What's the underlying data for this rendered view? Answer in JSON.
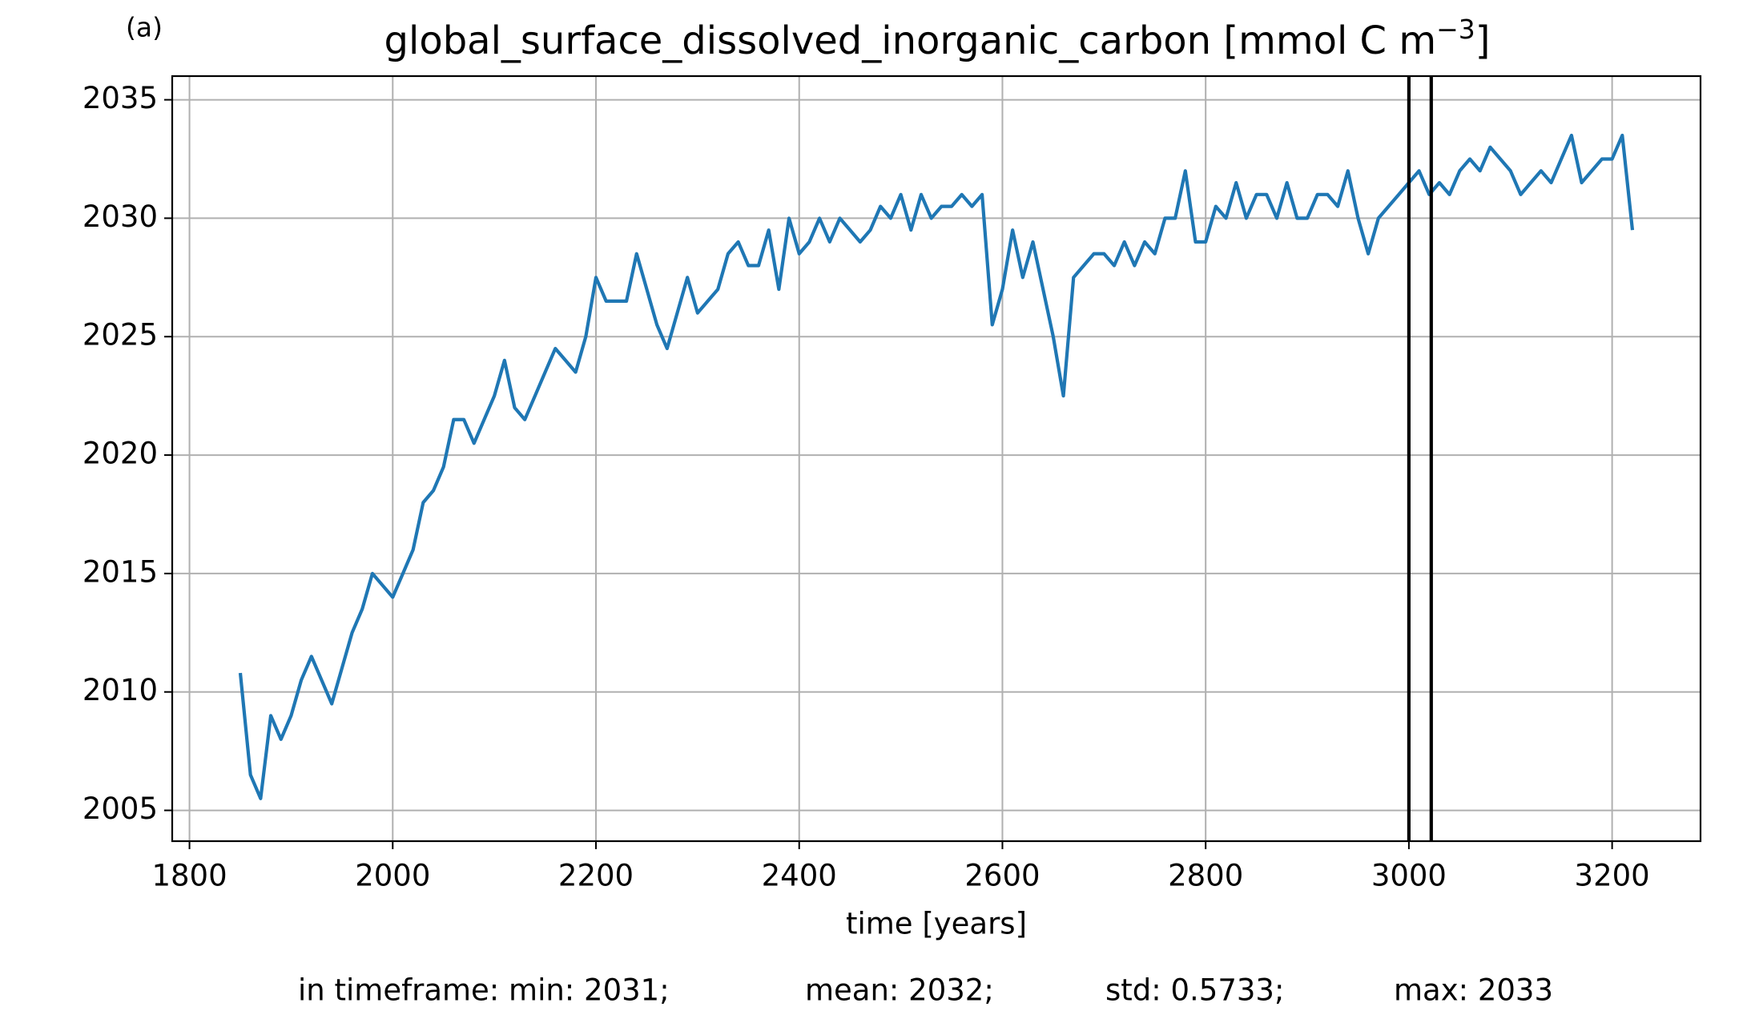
{
  "chart_data": {
    "type": "line",
    "panel_label": "(a)",
    "title": {
      "text": "global_surface_dissolved_inorganic_carbon [mmol C m",
      "superscript": "−3",
      "suffix": "]"
    },
    "xlabel": "time [years]",
    "x": [
      1850,
      1860,
      1870,
      1880,
      1890,
      1900,
      1910,
      1920,
      1930,
      1940,
      1950,
      1960,
      1970,
      1980,
      1990,
      2000,
      2010,
      2020,
      2030,
      2040,
      2050,
      2060,
      2070,
      2080,
      2090,
      2100,
      2110,
      2120,
      2130,
      2140,
      2150,
      2160,
      2170,
      2180,
      2190,
      2200,
      2210,
      2220,
      2230,
      2240,
      2250,
      2260,
      2270,
      2280,
      2290,
      2300,
      2310,
      2320,
      2330,
      2340,
      2350,
      2360,
      2370,
      2380,
      2390,
      2400,
      2410,
      2420,
      2430,
      2440,
      2450,
      2460,
      2470,
      2480,
      2490,
      2500,
      2510,
      2520,
      2530,
      2540,
      2550,
      2560,
      2570,
      2580,
      2590,
      2600,
      2610,
      2620,
      2630,
      2640,
      2650,
      2660,
      2670,
      2680,
      2690,
      2700,
      2710,
      2720,
      2730,
      2740,
      2750,
      2760,
      2770,
      2780,
      2790,
      2800,
      2810,
      2820,
      2830,
      2840,
      2850,
      2860,
      2870,
      2880,
      2890,
      2900,
      2910,
      2920,
      2930,
      2940,
      2950,
      2960,
      2970,
      2980,
      2990,
      3000,
      3010,
      3020,
      3030,
      3040,
      3050,
      3060,
      3070,
      3080,
      3090,
      3100,
      3110,
      3120,
      3130,
      3140,
      3150,
      3160,
      3170,
      3180,
      3190,
      3200,
      3210,
      3220
    ],
    "values": [
      2010.8,
      2006.5,
      2005.5,
      2009,
      2008,
      2009,
      2010.5,
      2011.5,
      2010.5,
      2009.5,
      2011,
      2012.5,
      2013.5,
      2015,
      2014.5,
      2014,
      2015,
      2016,
      2018,
      2018.5,
      2019.5,
      2021.5,
      2021.5,
      2020.5,
      2021.5,
      2022.5,
      2024,
      2022,
      2021.5,
      2022.5,
      2023.5,
      2024.5,
      2024,
      2023.5,
      2025,
      2027.5,
      2026.5,
      2026.5,
      2026.5,
      2028.5,
      2027,
      2025.5,
      2024.5,
      2026,
      2027.5,
      2026,
      2026.5,
      2027,
      2028.5,
      2029,
      2028,
      2028,
      2029.5,
      2027,
      2030,
      2028.5,
      2029,
      2030,
      2029,
      2030,
      2029.5,
      2029,
      2029.5,
      2030.5,
      2030,
      2031,
      2029.5,
      2031,
      2030,
      2030.5,
      2030.5,
      2031,
      2030.5,
      2031,
      2025.5,
      2027,
      2029.5,
      2027.5,
      2029,
      2027,
      2025,
      2022.5,
      2027.5,
      2028,
      2028.5,
      2028.5,
      2028,
      2029,
      2028,
      2029,
      2028.5,
      2030,
      2030,
      2032,
      2029,
      2029,
      2030.5,
      2030,
      2031.5,
      2030,
      2031,
      2031,
      2030,
      2031.5,
      2030,
      2030,
      2031,
      2031,
      2030.5,
      2032,
      2030,
      2028.5,
      2030,
      2030.5,
      2031,
      2031.5,
      2032,
      2031,
      2031.5,
      2031,
      2032,
      2032.5,
      2032,
      2033,
      2032.5,
      2032,
      2031,
      2031.5,
      2032,
      2031.5,
      2032.5,
      2033.5,
      2031.5,
      2032,
      2032.5,
      2032.5,
      2033.5,
      2029.5
    ],
    "color": "#1f77b4",
    "vlines": [
      3000,
      3022
    ],
    "vline_color": "#000000",
    "xlim": [
      1783,
      3287
    ],
    "ylim": [
      2003.7,
      2036.0
    ],
    "xticks": [
      1800,
      2000,
      2200,
      2400,
      2600,
      2800,
      3000,
      3200
    ],
    "yticks": [
      2005,
      2010,
      2015,
      2020,
      2025,
      2030,
      2035
    ],
    "grid": true,
    "footer": [
      "in timeframe: min: 2031;",
      "mean: 2032;",
      "std: 0.5733;",
      "max: 2033"
    ]
  }
}
